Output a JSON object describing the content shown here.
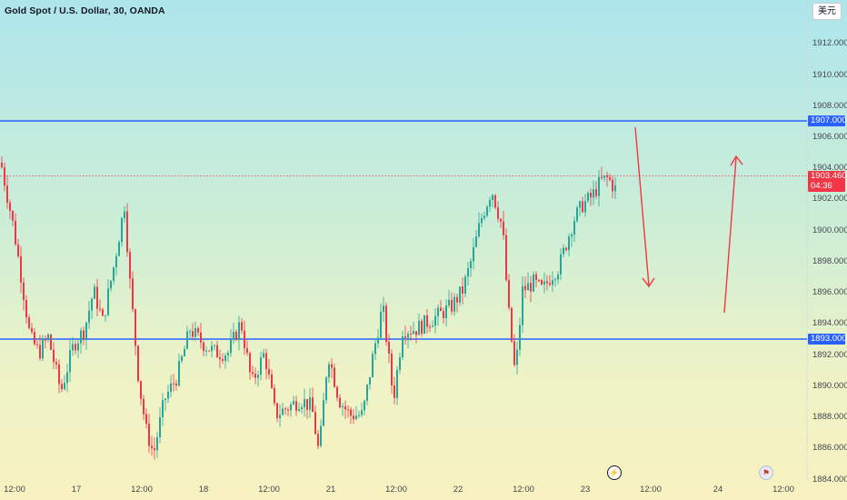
{
  "header": {
    "symbol_title": "Gold Spot / U.S. Dollar, 30, OANDA"
  },
  "currency_button": {
    "label": "美元"
  },
  "price_axis": {
    "labels": [
      "1912.000",
      "1910.000",
      "1908.000",
      "1906.000",
      "1904.000",
      "1902.000",
      "1900.000",
      "1898.000",
      "1896.000",
      "1894.000",
      "1892.000",
      "1890.000",
      "1888.000",
      "1886.000",
      "1884.000"
    ]
  },
  "time_axis": {
    "labels": [
      "12:00",
      "17",
      "12:00",
      "18",
      "12:00",
      "21",
      "12:00",
      "22",
      "12:00",
      "23",
      "12:00",
      "24",
      "12:00"
    ]
  },
  "levels": {
    "resistance": {
      "label": "1907.000",
      "value": 1907.0,
      "color": "#2962ff"
    },
    "support": {
      "label": "1893.000",
      "value": 1893.0,
      "color": "#2962ff"
    }
  },
  "last_price": {
    "price": "1903.460",
    "countdown": "04:36",
    "color": "#f23645"
  },
  "colors": {
    "up": "#26a69a",
    "down": "#f23645",
    "arrow": "#f23645"
  },
  "events": {
    "flash_icon": "lightning-icon",
    "flag_icon": "us-flag-icon"
  }
}
